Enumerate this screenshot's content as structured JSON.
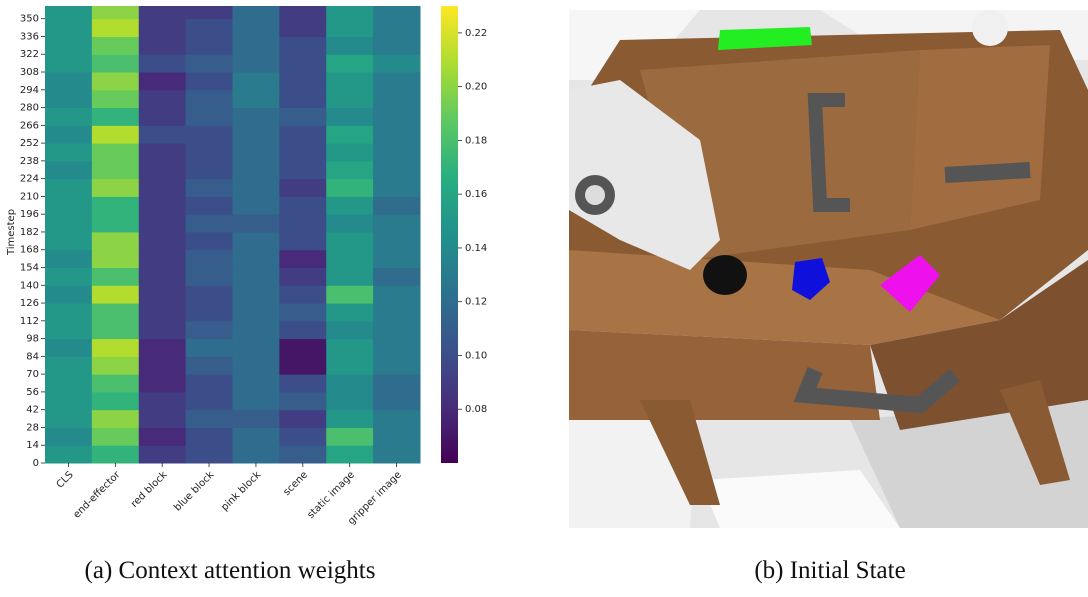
{
  "chart_data": {
    "type": "heatmap",
    "y_label": "Timestep",
    "categories": [
      "CLS",
      "end-effector",
      "red block",
      "blue block",
      "pink block",
      "scene",
      "static image",
      "gripper image"
    ],
    "y_bins": [
      0,
      14,
      28,
      42,
      56,
      70,
      84,
      98,
      112,
      126,
      140,
      154,
      168,
      182,
      196,
      210,
      224,
      238,
      252,
      266,
      280,
      294,
      308,
      322,
      336,
      350,
      360
    ],
    "ylim": [
      0,
      360
    ],
    "yticks": [
      0,
      14,
      28,
      42,
      56,
      70,
      84,
      98,
      112,
      126,
      140,
      154,
      168,
      182,
      196,
      210,
      224,
      238,
      252,
      266,
      280,
      294,
      308,
      322,
      336,
      350
    ],
    "values": [
      [
        0.15,
        0.17,
        0.09,
        0.1,
        0.12,
        0.11,
        0.16,
        0.13
      ],
      [
        0.14,
        0.19,
        0.08,
        0.1,
        0.12,
        0.1,
        0.18,
        0.13
      ],
      [
        0.15,
        0.2,
        0.09,
        0.11,
        0.11,
        0.09,
        0.15,
        0.13
      ],
      [
        0.15,
        0.17,
        0.09,
        0.1,
        0.12,
        0.11,
        0.14,
        0.12
      ],
      [
        0.15,
        0.18,
        0.08,
        0.1,
        0.12,
        0.1,
        0.14,
        0.12
      ],
      [
        0.15,
        0.2,
        0.08,
        0.11,
        0.12,
        0.07,
        0.15,
        0.13
      ],
      [
        0.14,
        0.21,
        0.08,
        0.12,
        0.12,
        0.07,
        0.15,
        0.13
      ],
      [
        0.15,
        0.18,
        0.09,
        0.11,
        0.12,
        0.1,
        0.14,
        0.13
      ],
      [
        0.15,
        0.18,
        0.09,
        0.1,
        0.12,
        0.11,
        0.15,
        0.13
      ],
      [
        0.14,
        0.21,
        0.09,
        0.1,
        0.12,
        0.1,
        0.18,
        0.13
      ],
      [
        0.15,
        0.18,
        0.09,
        0.11,
        0.12,
        0.09,
        0.15,
        0.12
      ],
      [
        0.14,
        0.2,
        0.09,
        0.11,
        0.12,
        0.08,
        0.15,
        0.13
      ],
      [
        0.15,
        0.2,
        0.09,
        0.1,
        0.12,
        0.1,
        0.15,
        0.13
      ],
      [
        0.15,
        0.17,
        0.09,
        0.11,
        0.11,
        0.1,
        0.14,
        0.13
      ],
      [
        0.15,
        0.17,
        0.09,
        0.1,
        0.12,
        0.1,
        0.15,
        0.12
      ],
      [
        0.15,
        0.2,
        0.09,
        0.11,
        0.12,
        0.09,
        0.17,
        0.13
      ],
      [
        0.14,
        0.19,
        0.09,
        0.1,
        0.12,
        0.1,
        0.16,
        0.13
      ],
      [
        0.15,
        0.19,
        0.09,
        0.1,
        0.12,
        0.1,
        0.15,
        0.13
      ],
      [
        0.14,
        0.21,
        0.1,
        0.1,
        0.12,
        0.1,
        0.16,
        0.13
      ],
      [
        0.15,
        0.17,
        0.09,
        0.11,
        0.12,
        0.11,
        0.14,
        0.13
      ],
      [
        0.14,
        0.19,
        0.09,
        0.11,
        0.13,
        0.1,
        0.15,
        0.13
      ],
      [
        0.14,
        0.2,
        0.08,
        0.1,
        0.13,
        0.1,
        0.15,
        0.13
      ],
      [
        0.15,
        0.18,
        0.1,
        0.11,
        0.12,
        0.1,
        0.16,
        0.14
      ],
      [
        0.15,
        0.19,
        0.09,
        0.1,
        0.12,
        0.1,
        0.14,
        0.13
      ],
      [
        0.15,
        0.21,
        0.09,
        0.1,
        0.12,
        0.09,
        0.15,
        0.13
      ],
      [
        0.15,
        0.2,
        0.09,
        0.09,
        0.12,
        0.09,
        0.15,
        0.13
      ]
    ],
    "colormap": "viridis",
    "clim": [
      0.06,
      0.23
    ],
    "colorbar_ticks": [
      0.08,
      {
        "value": 0.1,
        "label": "0.10"
      },
      0.12,
      0.14,
      0.16,
      0.18,
      {
        "value": 0.2,
        "label": "0.20"
      },
      0.22
    ]
  },
  "captions": [
    "(a) Context attention weights",
    "(b) Initial State"
  ]
}
